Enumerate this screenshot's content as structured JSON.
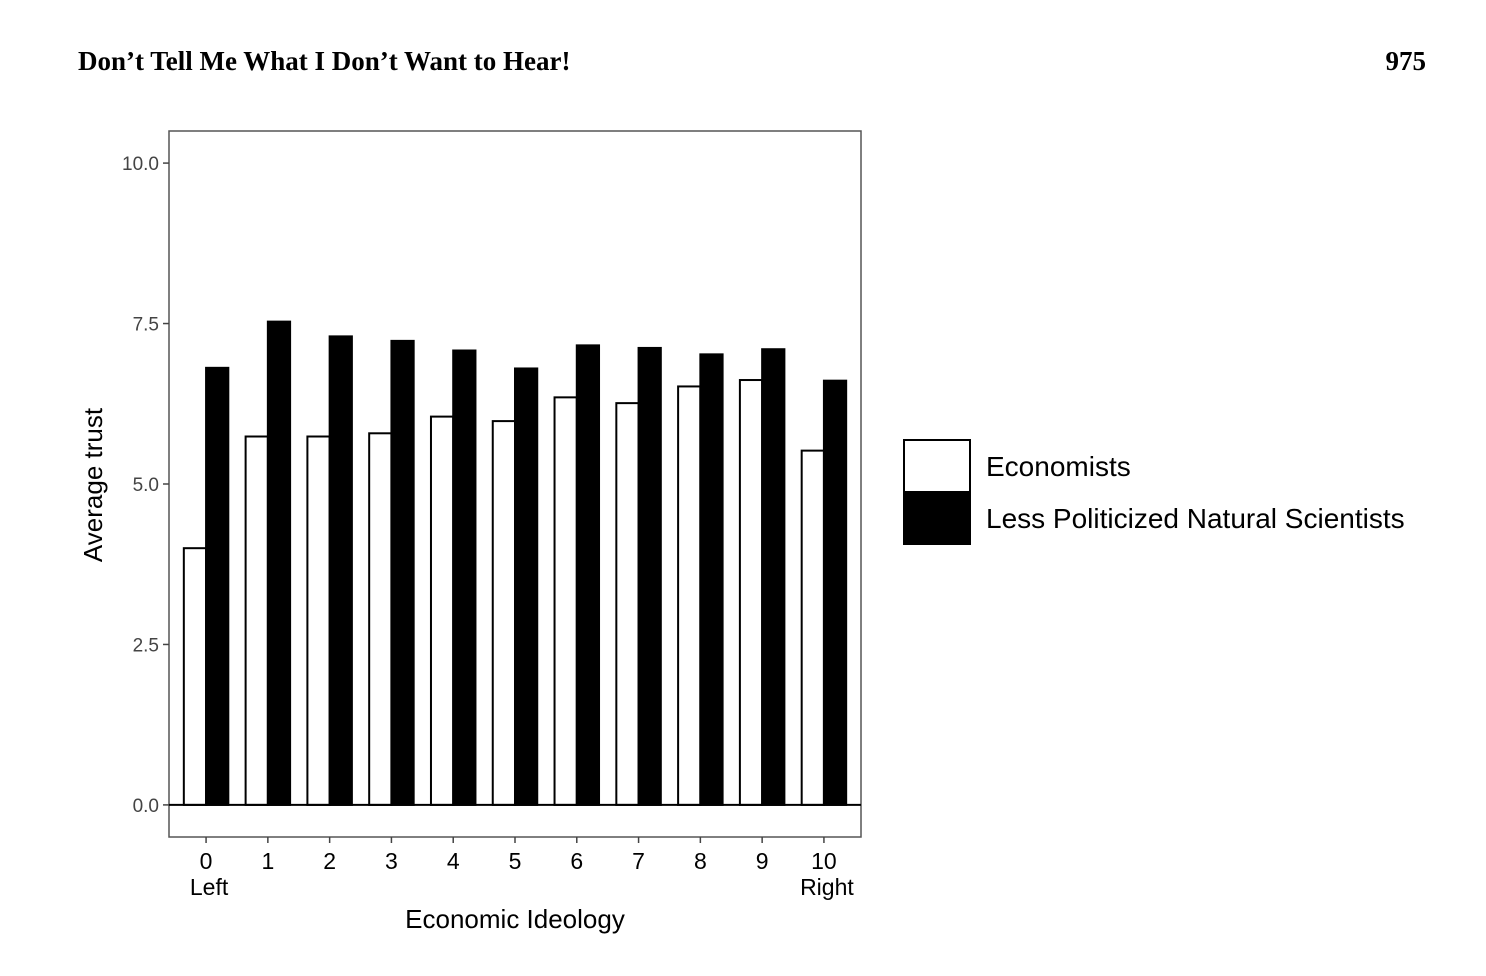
{
  "header": {
    "title": "Don’t Tell Me What I Don’t Want to Hear!",
    "page_number": "975"
  },
  "chart_data": {
    "type": "bar",
    "xlabel": "Economic Ideology",
    "ylabel": "Average trust",
    "categories": [
      "0",
      "1",
      "2",
      "3",
      "4",
      "5",
      "6",
      "7",
      "8",
      "9",
      "10"
    ],
    "category_sublabels": {
      "0": "Left",
      "10": "Right"
    },
    "ylim": [
      -0.5,
      10.5
    ],
    "yticks": [
      "0.0",
      "2.5",
      "5.0",
      "7.5",
      "10.0"
    ],
    "series": [
      {
        "name": "Economists",
        "fill": "#ffffff",
        "values": [
          4.0,
          5.74,
          5.74,
          5.79,
          6.05,
          5.98,
          6.35,
          6.26,
          6.52,
          6.62,
          5.52
        ]
      },
      {
        "name": "Less Politicized Natural Scientists",
        "fill": "#000000",
        "values": [
          6.81,
          7.53,
          7.3,
          7.23,
          7.08,
          6.8,
          7.16,
          7.12,
          7.02,
          7.1,
          6.61
        ]
      }
    ],
    "grid": false,
    "legend_position": "right"
  }
}
